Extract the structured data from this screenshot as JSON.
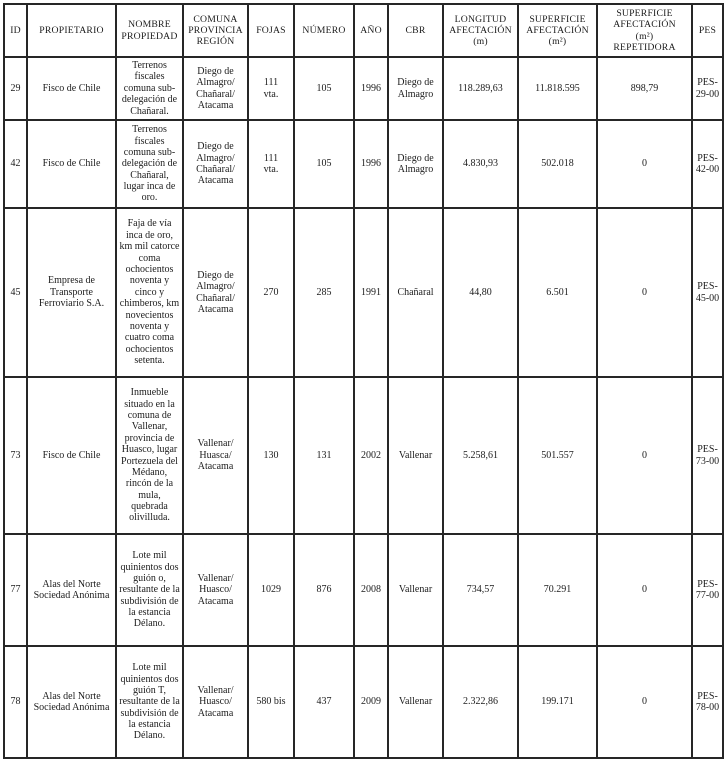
{
  "table": {
    "columns": [
      "ID",
      "PROPIETARIO",
      "NOMBRE\nPROPIEDAD",
      "COMUNA\nPROVINCIA\nREGIÓN",
      "FOJAS",
      "NÚMERO",
      "AÑO",
      "CBR",
      "LONGITUD\nAFECTACIÓN\n(m)",
      "SUPERFICIE\nAFECTACIÓN\n(m²)",
      "SUPERFICIE\nAFECTACIÓN\n(m²)\nREPETIDORA",
      "PES"
    ],
    "rows": [
      {
        "id": "29",
        "propietario": "Fisco de Chile",
        "nombre": "Terrenos fiscales comuna sub-delegación de Chañaral.",
        "comuna": "Diego de Almagro/ Chañaral/ Atacama",
        "fojas": "111\nvta.",
        "numero": "105",
        "ano": "1996",
        "cbr": "Diego de Almagro",
        "longitud": "118.289,63",
        "superficie": "11.818.595",
        "repetidora": "898,79",
        "pes": "PES-29-00"
      },
      {
        "id": "42",
        "propietario": "Fisco de Chile",
        "nombre": "Terrenos fiscales comuna sub-delegación de Chañaral, lugar inca de oro.",
        "comuna": "Diego de Almagro/ Chañaral/ Atacama",
        "fojas": "111\nvta.",
        "numero": "105",
        "ano": "1996",
        "cbr": "Diego de Almagro",
        "longitud": "4.830,93",
        "superficie": "502.018",
        "repetidora": "0",
        "pes": "PES-42-00"
      },
      {
        "id": "45",
        "propietario": "Empresa de Transporte Ferroviario S.A.",
        "nombre": "Faja de vía inca de oro, km mil catorce coma ochocientos noventa y cinco y chimberos, km novecientos noventa y cuatro coma ochocientos setenta.",
        "comuna": "Diego de Almagro/ Chañaral/ Atacama",
        "fojas": "270",
        "numero": "285",
        "ano": "1991",
        "cbr": "Chañaral",
        "longitud": "44,80",
        "superficie": "6.501",
        "repetidora": "0",
        "pes": "PES-45-00"
      },
      {
        "id": "73",
        "propietario": "Fisco de Chile",
        "nombre": "Inmueble situado en la comuna de Vallenar, provincia de Huasco, lugar Portezuela del Médano, rincón de la mula, quebrada olivilluda.",
        "comuna": "Vallenar/ Huasca/ Atacama",
        "fojas": "130",
        "numero": "131",
        "ano": "2002",
        "cbr": "Vallenar",
        "longitud": "5.258,61",
        "superficie": "501.557",
        "repetidora": "0",
        "pes": "PES-73-00"
      },
      {
        "id": "77",
        "propietario": "Alas del Norte Sociedad Anónima",
        "nombre": "Lote mil quinientos dos guión o, resultante de la subdivisión de la estancia Délano.",
        "comuna": "Vallenar/ Huasco/ Atacama",
        "fojas": "1029",
        "numero": "876",
        "ano": "2008",
        "cbr": "Vallenar",
        "longitud": "734,57",
        "superficie": "70.291",
        "repetidora": "0",
        "pes": "PES-77-00"
      },
      {
        "id": "78",
        "propietario": "Alas del Norte Sociedad Anónima",
        "nombre": "Lote mil quinientos dos guión T, resultante de la subdivisión de la estancia Délano.",
        "comuna": "Vallenar/ Huasco/ Atacama",
        "fojas": "580 bis",
        "numero": "437",
        "ano": "2009",
        "cbr": "Vallenar",
        "longitud": "2.322,86",
        "superficie": "199.171",
        "repetidora": "0",
        "pes": "PES-78-00"
      }
    ]
  },
  "colors": {
    "border": "#262626",
    "text": "#1c1c1c",
    "background": "#ffffff"
  }
}
